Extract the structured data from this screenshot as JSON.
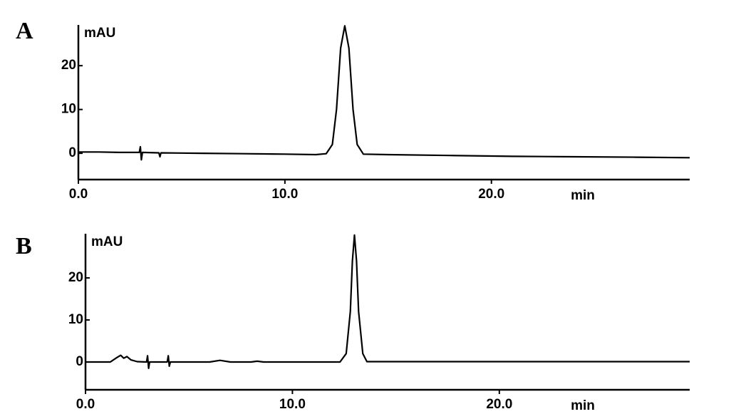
{
  "chart_data": [
    {
      "type": "line",
      "panel_label": "A",
      "y_label": "mAU",
      "x_label": "min",
      "color": "#000000",
      "x": [
        0,
        1,
        2,
        2.95,
        3.0,
        3.05,
        3.1,
        3.9,
        3.95,
        4.0,
        6,
        8,
        10,
        11.5,
        12.0,
        12.3,
        12.5,
        12.7,
        12.9,
        13.1,
        13.3,
        13.5,
        13.8,
        15,
        18,
        21,
        24,
        27,
        29.6
      ],
      "values": [
        0.3,
        0.3,
        0.2,
        0.2,
        1.5,
        -1.5,
        0.2,
        0.1,
        -0.8,
        0.1,
        0,
        -0.1,
        -0.2,
        -0.3,
        -0.1,
        2,
        10,
        24,
        29.1,
        24,
        10,
        2,
        -0.2,
        -0.3,
        -0.5,
        -0.7,
        -0.8,
        -0.9,
        -1.0
      ],
      "xlim": [
        0,
        29.6
      ],
      "ylim": [
        -6,
        29.3
      ],
      "xticks": [
        {
          "value": 0,
          "label": "0.0"
        },
        {
          "value": 10,
          "label": "10.0"
        },
        {
          "value": 20,
          "label": "20.0"
        }
      ],
      "yticks": [
        0,
        10,
        20
      ]
    },
    {
      "type": "line",
      "panel_label": "B",
      "y_label": "mAU",
      "x_label": "min",
      "color": "#000000",
      "x": [
        0,
        1.2,
        1.5,
        1.7,
        1.85,
        2.0,
        2.2,
        2.5,
        2.95,
        3.0,
        3.05,
        3.1,
        3.95,
        4.0,
        4.05,
        4.1,
        6,
        6.5,
        7,
        8,
        8.3,
        8.6,
        10,
        12.3,
        12.6,
        12.8,
        12.9,
        13.0,
        13.1,
        13.2,
        13.4,
        13.6,
        16,
        20,
        25,
        29.2
      ],
      "values": [
        0,
        0,
        1.0,
        1.6,
        0.9,
        1.3,
        0.5,
        0.1,
        0,
        1.5,
        -1.5,
        0,
        0,
        1.5,
        -1.0,
        0,
        0,
        0.4,
        0,
        0,
        0.2,
        0,
        0,
        0,
        2,
        12,
        24,
        30.2,
        24,
        12,
        2,
        0.1,
        0.1,
        0.1,
        0.1,
        0.1
      ],
      "xlim": [
        0,
        29.2
      ],
      "ylim": [
        -6.6,
        30.5
      ],
      "xticks": [
        {
          "value": 0,
          "label": "0.0"
        },
        {
          "value": 10,
          "label": "10.0"
        },
        {
          "value": 20,
          "label": "20.0"
        }
      ],
      "yticks": [
        0,
        10,
        20
      ]
    }
  ]
}
